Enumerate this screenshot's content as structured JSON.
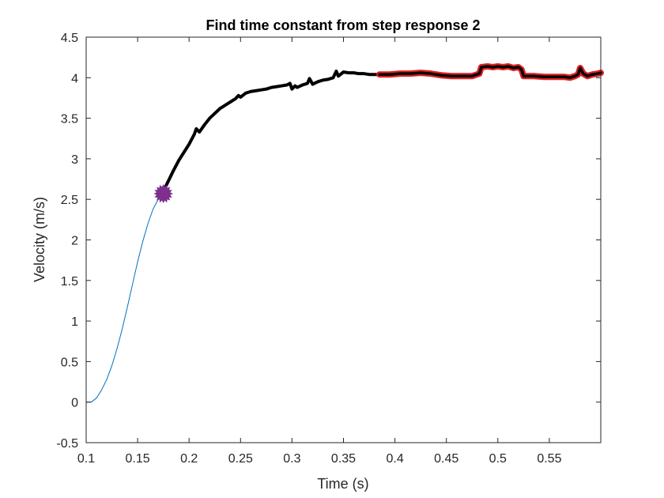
{
  "chart_data": {
    "type": "line",
    "title": "Find time constant from step response 2",
    "xlabel": "Time (s)",
    "ylabel": "Velocity (m/s)",
    "xlim": [
      0.1,
      0.6
    ],
    "ylim": [
      -0.5,
      4.5
    ],
    "xticks": [
      0.1,
      0.15,
      0.2,
      0.25,
      0.3,
      0.35,
      0.4,
      0.45,
      0.5,
      0.55
    ],
    "xtick_labels": [
      "0.1",
      "0.15",
      "0.2",
      "0.25",
      "0.3",
      "0.35",
      "0.4",
      "0.45",
      "0.5",
      "0.55"
    ],
    "yticks": [
      -0.5,
      0,
      0.5,
      1,
      1.5,
      2,
      2.5,
      3,
      3.5,
      4,
      4.5
    ],
    "ytick_labels": [
      "-0.5",
      "0",
      "0.5",
      "1",
      "1.5",
      "2",
      "2.5",
      "3",
      "3.5",
      "4",
      "4.5"
    ],
    "grid": false,
    "legend": "none",
    "series": [
      {
        "style": "thin-line",
        "color": "#0072BD",
        "x": [
          0.1,
          0.105,
          0.11,
          0.115,
          0.12,
          0.125,
          0.13,
          0.135,
          0.14,
          0.145,
          0.15,
          0.155,
          0.16,
          0.165,
          0.17,
          0.175
        ],
        "y": [
          0.0,
          0.0,
          0.05,
          0.15,
          0.28,
          0.45,
          0.66,
          0.9,
          1.17,
          1.45,
          1.73,
          1.98,
          2.2,
          2.38,
          2.5,
          2.57
        ]
      },
      {
        "style": "thick-line",
        "color": "#000000",
        "x": [
          0.175,
          0.18,
          0.185,
          0.19,
          0.195,
          0.2,
          0.205,
          0.207,
          0.21,
          0.215,
          0.22,
          0.225,
          0.23,
          0.235,
          0.24,
          0.245,
          0.248,
          0.25,
          0.255,
          0.26,
          0.265,
          0.27,
          0.275,
          0.28,
          0.285,
          0.29,
          0.295,
          0.298,
          0.3,
          0.303,
          0.305,
          0.31,
          0.315,
          0.317,
          0.32,
          0.325,
          0.33,
          0.335,
          0.34,
          0.343,
          0.345,
          0.35,
          0.355,
          0.36,
          0.365,
          0.37,
          0.375,
          0.38,
          0.385
        ],
        "y": [
          2.6,
          2.73,
          2.86,
          2.98,
          3.08,
          3.18,
          3.3,
          3.37,
          3.33,
          3.42,
          3.5,
          3.56,
          3.62,
          3.66,
          3.7,
          3.74,
          3.78,
          3.76,
          3.81,
          3.83,
          3.84,
          3.85,
          3.86,
          3.88,
          3.89,
          3.9,
          3.91,
          3.93,
          3.86,
          3.9,
          3.88,
          3.91,
          3.93,
          3.99,
          3.92,
          3.95,
          3.97,
          3.98,
          4.0,
          4.08,
          4.02,
          4.07,
          4.06,
          4.06,
          4.05,
          4.05,
          4.04,
          4.04,
          4.04
        ]
      },
      {
        "style": "thick-red-outline",
        "color": "#000000",
        "outline_color": "#E02020",
        "x": [
          0.385,
          0.395,
          0.405,
          0.415,
          0.425,
          0.435,
          0.445,
          0.455,
          0.465,
          0.475,
          0.482,
          0.484,
          0.49,
          0.495,
          0.5,
          0.505,
          0.51,
          0.515,
          0.52,
          0.523,
          0.525,
          0.535,
          0.545,
          0.555,
          0.565,
          0.57,
          0.575,
          0.578,
          0.58,
          0.583,
          0.587,
          0.592,
          0.597,
          0.6
        ],
        "y": [
          4.04,
          4.04,
          4.05,
          4.05,
          4.06,
          4.05,
          4.03,
          4.02,
          4.02,
          4.02,
          4.05,
          4.13,
          4.14,
          4.13,
          4.14,
          4.13,
          4.14,
          4.12,
          4.13,
          4.1,
          4.02,
          4.02,
          4.01,
          4.01,
          4.01,
          4.0,
          4.02,
          4.04,
          4.12,
          4.05,
          4.02,
          4.04,
          4.05,
          4.06
        ]
      }
    ],
    "marker": {
      "x": 0.175,
      "y": 2.57,
      "color": "#7E2F8E"
    }
  }
}
